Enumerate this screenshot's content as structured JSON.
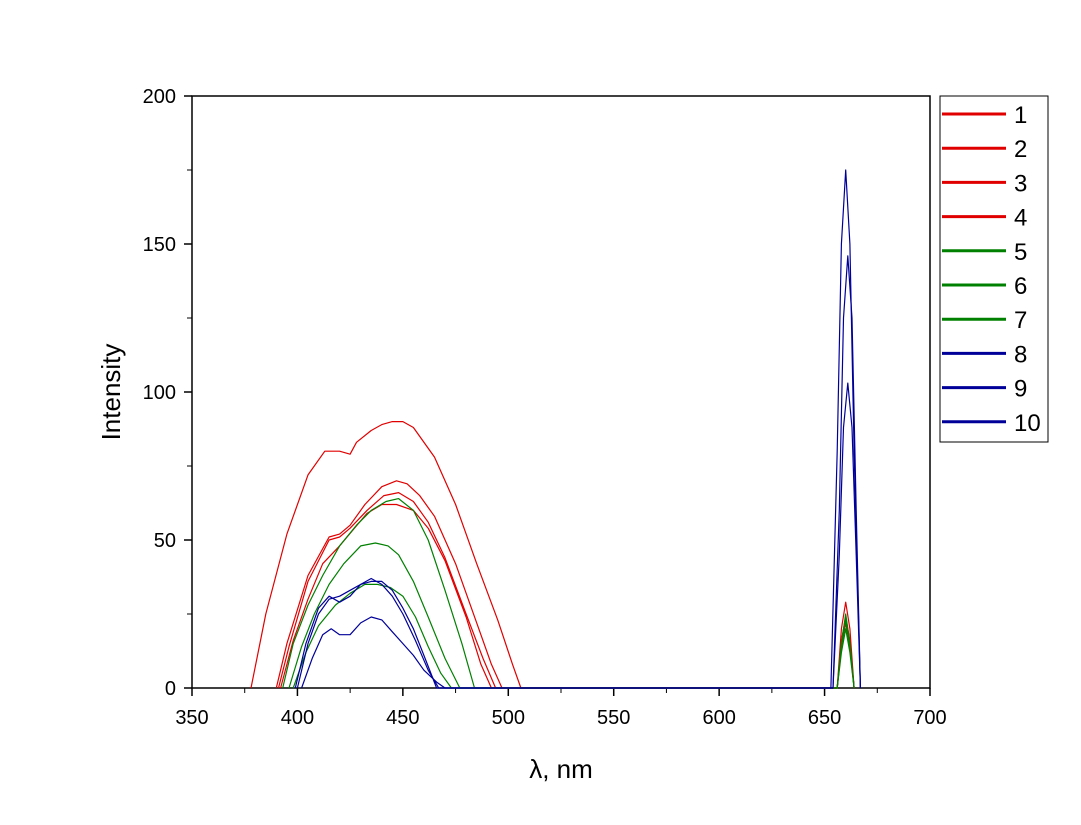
{
  "chart_data": {
    "type": "line",
    "title": "",
    "xlabel": "λ, nm",
    "ylabel": "Intensity",
    "xlim": [
      350,
      700
    ],
    "ylim": [
      0,
      200
    ],
    "xticks": [
      350,
      400,
      450,
      500,
      550,
      600,
      650,
      700
    ],
    "yticks": [
      0,
      50,
      100,
      150,
      200
    ],
    "grid": false,
    "legend_position": "outside-right-top",
    "colors": {
      "red": "#e00000",
      "green": "#008000",
      "blue": "#000099",
      "axis": "#000000"
    },
    "series": [
      {
        "name": "1",
        "color": "#e00000",
        "x": [
          378,
          385,
          395,
          405,
          413,
          420,
          425,
          428,
          435,
          440,
          445,
          450,
          455,
          465,
          475,
          485,
          495,
          502,
          506,
          656,
          658,
          660,
          662,
          664
        ],
        "y": [
          0,
          25,
          52,
          72,
          80,
          80,
          79,
          83,
          87,
          89,
          90,
          90,
          88,
          78,
          62,
          42,
          23,
          8,
          0,
          0,
          15,
          22,
          15,
          0
        ]
      },
      {
        "name": "2",
        "color": "#e00000",
        "x": [
          390,
          395,
          405,
          415,
          420,
          425,
          432,
          440,
          447,
          452,
          458,
          465,
          475,
          485,
          492,
          497,
          656,
          658,
          660,
          662,
          664
        ],
        "y": [
          0,
          15,
          38,
          51,
          52,
          55,
          62,
          68,
          70,
          69,
          65,
          58,
          42,
          22,
          8,
          0,
          0,
          20,
          29,
          20,
          0
        ]
      },
      {
        "name": "3",
        "color": "#e00000",
        "x": [
          391,
          396,
          405,
          415,
          420,
          425,
          433,
          441,
          448,
          455,
          462,
          470,
          480,
          488,
          494,
          656,
          658,
          660,
          662,
          664
        ],
        "y": [
          0,
          14,
          36,
          50,
          51,
          54,
          60,
          65,
          66,
          63,
          56,
          44,
          25,
          10,
          0,
          0,
          16,
          24,
          16,
          0
        ]
      },
      {
        "name": "4",
        "color": "#e00000",
        "x": [
          392,
          398,
          405,
          412,
          420,
          427,
          433,
          440,
          447,
          455,
          462,
          470,
          480,
          487,
          492,
          656,
          658,
          660,
          662,
          664
        ],
        "y": [
          0,
          16,
          30,
          42,
          48,
          54,
          59,
          62,
          62,
          60,
          54,
          43,
          24,
          8,
          0,
          0,
          14,
          22,
          14,
          0
        ]
      },
      {
        "name": "5",
        "color": "#008000",
        "x": [
          393,
          398,
          405,
          412,
          420,
          428,
          435,
          442,
          448,
          455,
          462,
          470,
          478,
          484,
          656,
          658,
          660,
          662,
          664
        ],
        "y": [
          0,
          15,
          28,
          38,
          48,
          55,
          60,
          63,
          64,
          60,
          50,
          33,
          15,
          0,
          0,
          15,
          25,
          15,
          0
        ]
      },
      {
        "name": "6",
        "color": "#008000",
        "x": [
          396,
          402,
          408,
          415,
          422,
          430,
          437,
          443,
          448,
          455,
          462,
          470,
          477,
          656,
          658,
          660,
          662,
          664
        ],
        "y": [
          0,
          14,
          25,
          35,
          42,
          48,
          49,
          48,
          45,
          36,
          24,
          10,
          0,
          0,
          14,
          23,
          14,
          0
        ]
      },
      {
        "name": "7",
        "color": "#008000",
        "x": [
          398,
          404,
          410,
          418,
          425,
          432,
          438,
          444,
          450,
          456,
          462,
          468,
          473,
          656,
          658,
          660,
          662,
          664
        ],
        "y": [
          0,
          12,
          21,
          28,
          32,
          35,
          35,
          34,
          31,
          24,
          14,
          5,
          0,
          0,
          12,
          20,
          12,
          0
        ]
      },
      {
        "name": "8",
        "color": "#000099",
        "x": [
          399,
          404,
          410,
          415,
          420,
          425,
          430,
          435,
          440,
          445,
          450,
          456,
          462,
          467,
          653,
          656,
          658,
          660,
          662,
          664,
          667
        ],
        "y": [
          0,
          15,
          27,
          31,
          29,
          31,
          35,
          37,
          35,
          31,
          25,
          16,
          6,
          0,
          0,
          80,
          150,
          175,
          150,
          80,
          0
        ]
      },
      {
        "name": "9",
        "color": "#000099",
        "x": [
          400,
          405,
          410,
          415,
          420,
          425,
          430,
          435,
          440,
          445,
          450,
          455,
          460,
          466,
          654,
          657,
          659,
          661,
          663,
          665,
          667
        ],
        "y": [
          0,
          15,
          25,
          30,
          31,
          33,
          35,
          36,
          36,
          33,
          27,
          20,
          11,
          0,
          0,
          60,
          125,
          146,
          125,
          60,
          0
        ]
      },
      {
        "name": "10",
        "color": "#000099",
        "x": [
          402,
          407,
          412,
          416,
          420,
          425,
          430,
          435,
          440,
          445,
          450,
          455,
          460,
          466,
          470,
          654,
          657,
          659,
          661,
          663,
          665,
          667
        ],
        "y": [
          0,
          10,
          18,
          20,
          18,
          18,
          22,
          24,
          23,
          19,
          15,
          11,
          6,
          2,
          0,
          0,
          45,
          88,
          103,
          88,
          45,
          0
        ]
      }
    ]
  }
}
